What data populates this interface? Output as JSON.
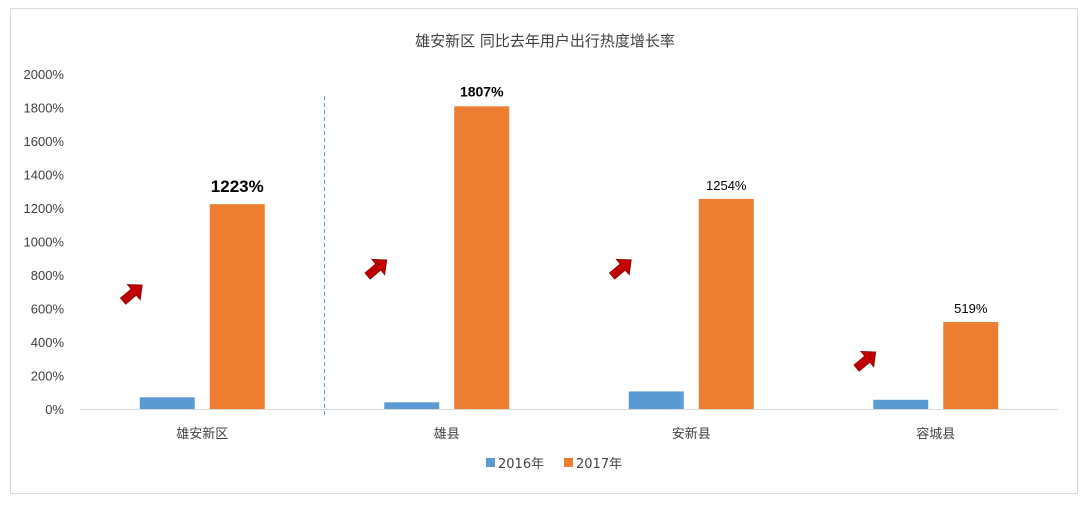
{
  "chart_data": {
    "type": "bar",
    "title": "雄安新区  同比去年用户出行热度增长率",
    "categories": [
      "雄安新区",
      "雄县",
      "安新县",
      "容城县"
    ],
    "series": [
      {
        "name": "2016年",
        "values": [
          70,
          40,
          105,
          55
        ],
        "color": "#5b9bd5"
      },
      {
        "name": "2017年",
        "values": [
          1223,
          1807,
          1254,
          519
        ],
        "color": "#ed7d31"
      }
    ],
    "data_labels": [
      "1223%",
      "1807%",
      "1254%",
      "519%"
    ],
    "data_label_emphasis": [
      "large-bold",
      "bold",
      "normal",
      "normal"
    ],
    "ylim": [
      0,
      2000
    ],
    "yticks": [
      "0%",
      "200%",
      "400%",
      "600%",
      "800%",
      "1000%",
      "1200%",
      "1400%",
      "1600%",
      "1800%",
      "2000%"
    ],
    "ytick_values": [
      0,
      200,
      400,
      600,
      800,
      1000,
      1200,
      1400,
      1600,
      1800,
      2000
    ],
    "arrow_values": [
      690,
      840,
      840,
      290
    ],
    "arrow_color": "#c00000",
    "divider_after_category": 0,
    "legend_position": "bottom",
    "grid": false,
    "xlabel": "",
    "ylabel": ""
  }
}
